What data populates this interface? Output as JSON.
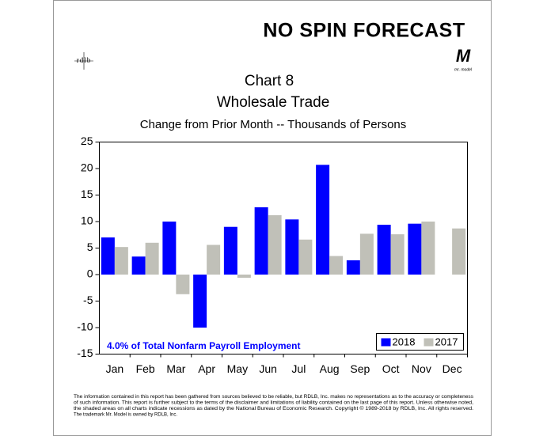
{
  "chart_data": {
    "type": "bar",
    "brand": "NO SPIN FORECAST",
    "logo_mark": "rdlb",
    "model_mark": "M",
    "model_name": "mr. model",
    "title_lines": [
      "Chart 8",
      "Wholesale Trade"
    ],
    "subtitle": "Change from Prior Month -- Thousands of Persons",
    "annotation": "4.0% of Total Nonfarm Payroll Employment",
    "categories": [
      "Jan",
      "Feb",
      "Mar",
      "Apr",
      "May",
      "Jun",
      "Jul",
      "Aug",
      "Sep",
      "Oct",
      "Nov",
      "Dec"
    ],
    "series": [
      {
        "name": "2018",
        "color": "#0000ff",
        "values": [
          7.0,
          3.4,
          10.0,
          -10.0,
          9.0,
          12.7,
          10.4,
          20.7,
          2.7,
          9.4,
          9.6,
          null
        ]
      },
      {
        "name": "2017",
        "color": "#c0c0b8",
        "values": [
          5.2,
          6.0,
          -3.7,
          5.6,
          -0.6,
          11.2,
          6.6,
          3.5,
          7.7,
          7.6,
          10.0,
          8.7
        ]
      }
    ],
    "ylim": [
      -15,
      25
    ],
    "yticks": [
      -15,
      -10,
      -5,
      0,
      5,
      10,
      15,
      20,
      25
    ],
    "grid": false,
    "legend": "lower right",
    "footer": [
      "The information contained in this report has been gathered from sources believed to be reliable, but RDLB, Inc. makes no representations as to the accuracy or completeness",
      "of such information. This report is further subject to the terms of the disclaimer and limitations of liability contained on the last page of this report. Unless otherwise noted,",
      "the shaded areas on all charts indicate recessions as dated by the National Bureau of Economic Research. Copyright © 1989-2018 by RDLB, Inc. All rights reserved.",
      "The trademark Mr. Model is owned by RDLB, Inc."
    ]
  }
}
